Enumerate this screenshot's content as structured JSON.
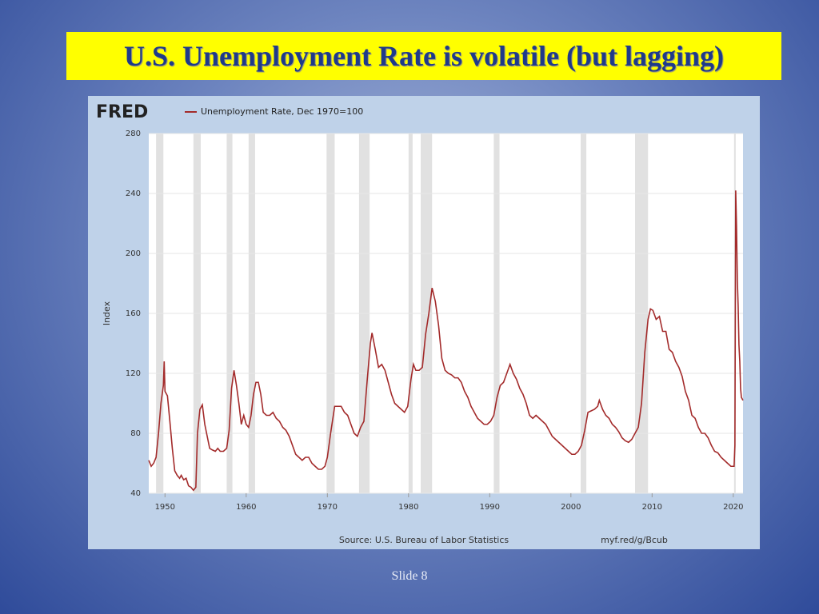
{
  "slide_title": "U.S. Unemployment Rate is volatile (but lagging)",
  "slide_number": "Slide 8",
  "chart_data": {
    "type": "line",
    "logo": "FRED",
    "ylabel": "Index",
    "source": "Source: U.S. Bureau of Labor Statistics",
    "link": "myf.red/g/Bcub",
    "xlim": [
      1948,
      2021.2
    ],
    "xticks": [
      1950,
      1960,
      1970,
      1980,
      1990,
      2000,
      2010,
      2020
    ],
    "ylim": [
      40,
      280
    ],
    "yticks": [
      40,
      80,
      120,
      160,
      200,
      240,
      280
    ],
    "grid": true,
    "recessions": [
      [
        1948.9,
        1949.8
      ],
      [
        1953.5,
        1954.4
      ],
      [
        1957.6,
        1958.3
      ],
      [
        1960.3,
        1961.1
      ],
      [
        1969.9,
        1970.9
      ],
      [
        1973.9,
        1975.2
      ],
      [
        1980.0,
        1980.5
      ],
      [
        1981.5,
        1982.9
      ],
      [
        1990.5,
        1991.2
      ],
      [
        2001.2,
        2001.9
      ],
      [
        2007.9,
        2009.5
      ],
      [
        2020.1,
        2020.3
      ]
    ],
    "recession_color": "#e1e1e1",
    "x": [
      1948.0,
      1948.3,
      1948.6,
      1948.9,
      1949.2,
      1949.5,
      1949.8,
      1949.9,
      1950.0,
      1950.3,
      1950.6,
      1950.9,
      1951.2,
      1951.5,
      1951.8,
      1952.0,
      1952.3,
      1952.6,
      1952.9,
      1953.2,
      1953.5,
      1953.8,
      1954.0,
      1954.3,
      1954.6,
      1954.9,
      1955.2,
      1955.5,
      1955.8,
      1956.2,
      1956.5,
      1956.8,
      1957.2,
      1957.6,
      1957.9,
      1958.2,
      1958.5,
      1958.8,
      1959.1,
      1959.4,
      1959.7,
      1960.0,
      1960.3,
      1960.6,
      1960.9,
      1961.2,
      1961.5,
      1961.8,
      1962.1,
      1962.5,
      1962.9,
      1963.3,
      1963.7,
      1964.1,
      1964.5,
      1964.9,
      1965.3,
      1965.7,
      1966.1,
      1966.5,
      1966.9,
      1967.3,
      1967.7,
      1968.1,
      1968.5,
      1968.9,
      1969.3,
      1969.7,
      1970.0,
      1970.4,
      1970.9,
      1971.3,
      1971.7,
      1972.1,
      1972.5,
      1972.9,
      1973.3,
      1973.7,
      1974.1,
      1974.5,
      1974.9,
      1975.3,
      1975.5,
      1975.9,
      1976.3,
      1976.7,
      1977.1,
      1977.5,
      1977.9,
      1978.3,
      1978.7,
      1979.1,
      1979.5,
      1979.9,
      1980.3,
      1980.6,
      1980.9,
      1981.3,
      1981.7,
      1982.1,
      1982.5,
      1982.9,
      1983.3,
      1983.7,
      1984.1,
      1984.5,
      1984.9,
      1985.3,
      1985.7,
      1986.1,
      1986.5,
      1986.9,
      1987.3,
      1987.7,
      1988.1,
      1988.5,
      1988.9,
      1989.3,
      1989.7,
      1990.1,
      1990.5,
      1990.9,
      1991.3,
      1991.7,
      1992.1,
      1992.5,
      1992.9,
      1993.3,
      1993.7,
      1994.1,
      1994.5,
      1994.9,
      1995.3,
      1995.7,
      1996.1,
      1996.5,
      1996.9,
      1997.3,
      1997.7,
      1998.1,
      1998.5,
      1998.9,
      1999.3,
      1999.7,
      2000.1,
      2000.5,
      2000.9,
      2001.3,
      2001.7,
      2002.1,
      2002.5,
      2002.9,
      2003.3,
      2003.5,
      2003.9,
      2004.3,
      2004.7,
      2005.1,
      2005.5,
      2005.9,
      2006.3,
      2006.7,
      2007.1,
      2007.5,
      2007.9,
      2008.3,
      2008.7,
      2009.1,
      2009.5,
      2009.8,
      2010.1,
      2010.5,
      2010.9,
      2011.3,
      2011.7,
      2012.1,
      2012.5,
      2012.9,
      2013.3,
      2013.7,
      2014.1,
      2014.5,
      2014.9,
      2015.3,
      2015.7,
      2016.1,
      2016.5,
      2016.9,
      2017.3,
      2017.7,
      2018.1,
      2018.5,
      2018.9,
      2019.3,
      2019.7,
      2020.1,
      2020.2,
      2020.3,
      2020.4,
      2020.5,
      2020.6,
      2020.7,
      2020.8,
      2020.9,
      2021.0,
      2021.2
    ],
    "series": [
      {
        "name": "Unemployment Rate, Dec 1970=100",
        "color": "#a32b2b",
        "values": [
          62,
          58,
          60,
          64,
          80,
          100,
          112,
          128,
          108,
          105,
          88,
          70,
          55,
          52,
          50,
          52,
          49,
          50,
          45,
          44,
          42,
          44,
          80,
          96,
          99,
          86,
          78,
          70,
          69,
          68,
          70,
          68,
          68,
          70,
          82,
          110,
          122,
          112,
          100,
          86,
          92,
          86,
          84,
          92,
          106,
          114,
          114,
          106,
          94,
          92,
          92,
          94,
          90,
          88,
          84,
          82,
          78,
          72,
          66,
          64,
          62,
          64,
          64,
          60,
          58,
          56,
          56,
          58,
          64,
          80,
          98,
          98,
          98,
          94,
          92,
          86,
          80,
          78,
          84,
          88,
          115,
          140,
          147,
          136,
          124,
          126,
          122,
          114,
          106,
          100,
          98,
          96,
          94,
          98,
          116,
          126,
          122,
          122,
          124,
          146,
          160,
          177,
          168,
          152,
          130,
          122,
          120,
          119,
          117,
          117,
          114,
          108,
          104,
          98,
          94,
          90,
          88,
          86,
          86,
          88,
          92,
          104,
          112,
          114,
          120,
          126,
          120,
          116,
          110,
          106,
          100,
          92,
          90,
          92,
          90,
          88,
          86,
          82,
          78,
          76,
          74,
          72,
          70,
          68,
          66,
          66,
          68,
          72,
          82,
          94,
          95,
          96,
          98,
          102,
          96,
          92,
          90,
          86,
          84,
          81,
          77,
          75,
          74,
          76,
          80,
          84,
          100,
          134,
          156,
          163,
          162,
          156,
          158,
          148,
          148,
          136,
          134,
          128,
          124,
          118,
          108,
          102,
          92,
          90,
          84,
          80,
          80,
          77,
          72,
          68,
          67,
          64,
          62,
          60,
          58,
          58,
          72,
          242,
          218,
          182,
          165,
          139,
          128,
          110,
          104,
          102
        ]
      }
    ]
  }
}
